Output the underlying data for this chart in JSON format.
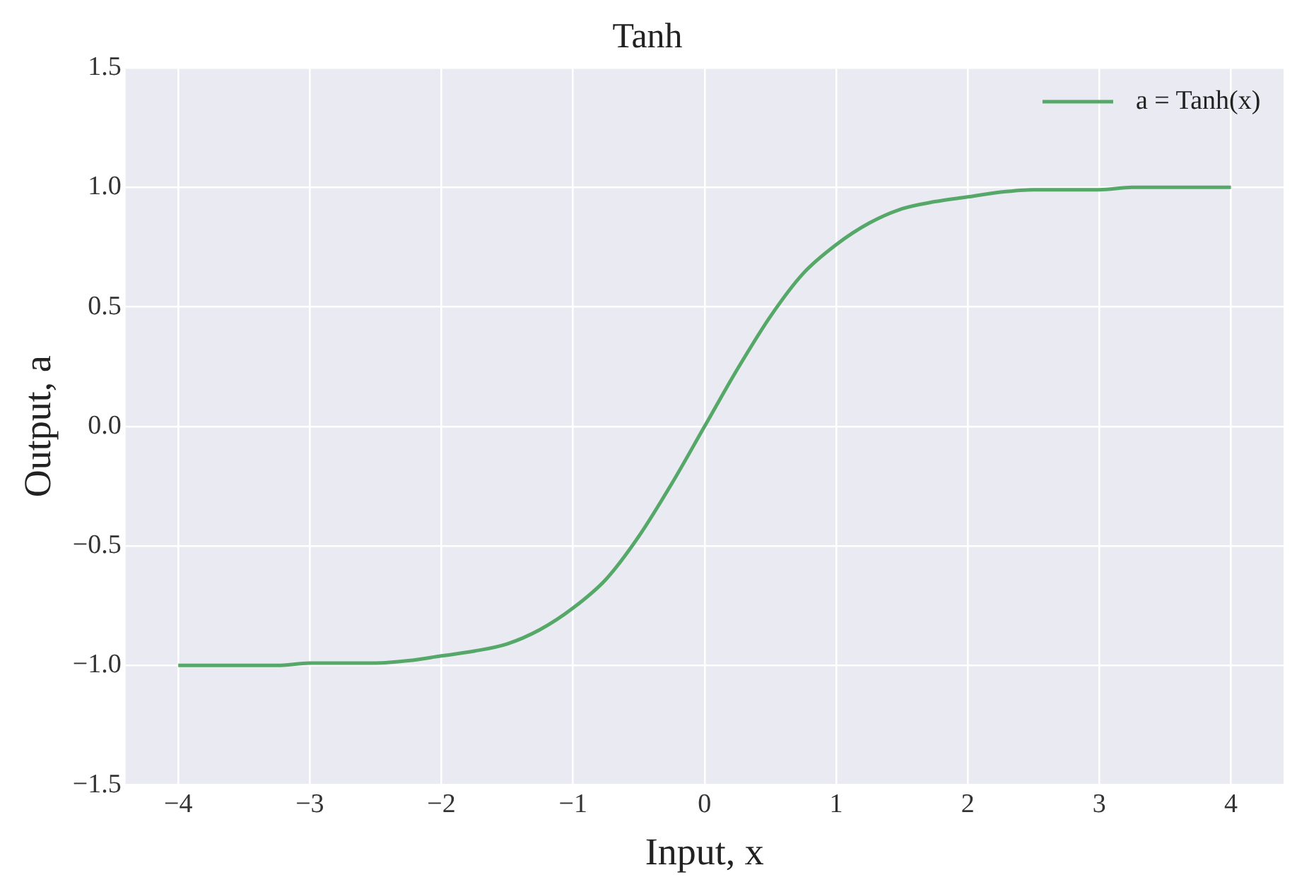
{
  "chart_data": {
    "type": "line",
    "title": "Tanh",
    "xlabel": "Input, x",
    "ylabel": "Output, a",
    "x": [
      -4,
      -3.75,
      -3.5,
      -3.25,
      -3,
      -2.75,
      -2.5,
      -2.25,
      -2,
      -1.75,
      -1.5,
      -1.25,
      -1,
      -0.75,
      -0.5,
      -0.25,
      0,
      0.25,
      0.5,
      0.75,
      1,
      1.25,
      1.5,
      1.75,
      2,
      2.25,
      2.5,
      2.75,
      3,
      3.25,
      3.5,
      3.75,
      4
    ],
    "series": [
      {
        "name": "a = Tanh(x)",
        "color": "#55a868",
        "values": [
          -1.0,
          -1.0,
          -1.0,
          -1.0,
          -0.99,
          -0.99,
          -0.99,
          -0.98,
          -0.96,
          -0.94,
          -0.91,
          -0.85,
          -0.76,
          -0.64,
          -0.46,
          -0.24,
          0,
          0.24,
          0.46,
          0.64,
          0.76,
          0.85,
          0.91,
          0.94,
          0.96,
          0.98,
          0.99,
          0.99,
          0.99,
          1.0,
          1.0,
          1.0,
          1.0
        ]
      }
    ],
    "xlim": [
      -4.4,
      4.4
    ],
    "ylim": [
      -1.5,
      1.5
    ],
    "xticks": [
      {
        "value": -4,
        "label": "−4"
      },
      {
        "value": -3,
        "label": "−3"
      },
      {
        "value": -2,
        "label": "−2"
      },
      {
        "value": -1,
        "label": "−1"
      },
      0,
      1,
      2,
      3,
      4
    ],
    "yticks": [
      {
        "value": -1.5,
        "label": "−1.5"
      },
      {
        "value": -1,
        "label": "−1.0"
      },
      {
        "value": -0.5,
        "label": "−0.5"
      },
      {
        "value": 0,
        "label": "0.0"
      },
      0.5,
      {
        "value": 1,
        "label": "1.0"
      },
      1.5
    ],
    "grid": true,
    "legend": "top right"
  }
}
